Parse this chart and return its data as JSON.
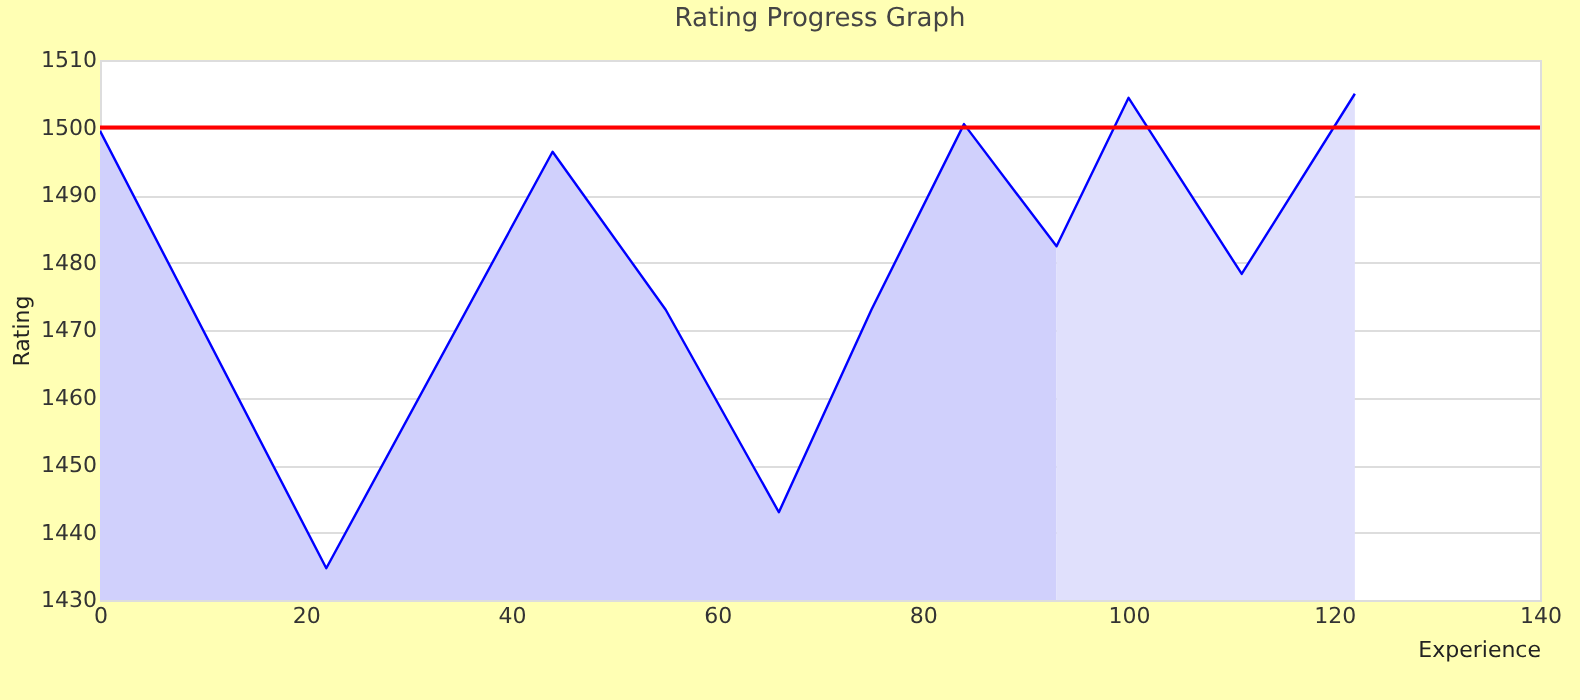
{
  "chart_data": {
    "type": "area",
    "title": "Rating Progress Graph",
    "xlabel": "Experience",
    "ylabel": "Rating",
    "series": [
      {
        "color": "#d0d0fc",
        "x": [
          0,
          22,
          44,
          55,
          66,
          75,
          84,
          93
        ],
        "values": [
          1499.5,
          1434.7,
          1496.4,
          1473,
          1443,
          1473,
          1500.5,
          1482.4
        ]
      },
      {
        "color": "#e0e0fc",
        "x": [
          93,
          100,
          111,
          122
        ],
        "values": [
          1482.4,
          1504.4,
          1478.3,
          1505
        ]
      },
      {
        "type": "line",
        "color": "#0000ff",
        "x": [
          0,
          22,
          44,
          55,
          66,
          75,
          84,
          93,
          100,
          111,
          122
        ],
        "values": [
          1499.5,
          1434.7,
          1496.4,
          1473,
          1443,
          1473,
          1500.5,
          1482.4,
          1504.4,
          1478.3,
          1505
        ]
      }
    ],
    "xlim": [
      0,
      140
    ],
    "xticks": [
      0,
      20,
      40,
      60,
      80,
      100,
      120,
      140
    ],
    "ylim": [
      1430,
      1510
    ],
    "yticks": [
      1430,
      1440,
      1450,
      1460,
      1470,
      1480,
      1490,
      1500,
      1510
    ],
    "ref_lines": [
      {
        "axis": "y",
        "value": 1500,
        "color": "#ff0000"
      }
    ],
    "grid": "y",
    "marker": "none",
    "line_style": "solid"
  }
}
